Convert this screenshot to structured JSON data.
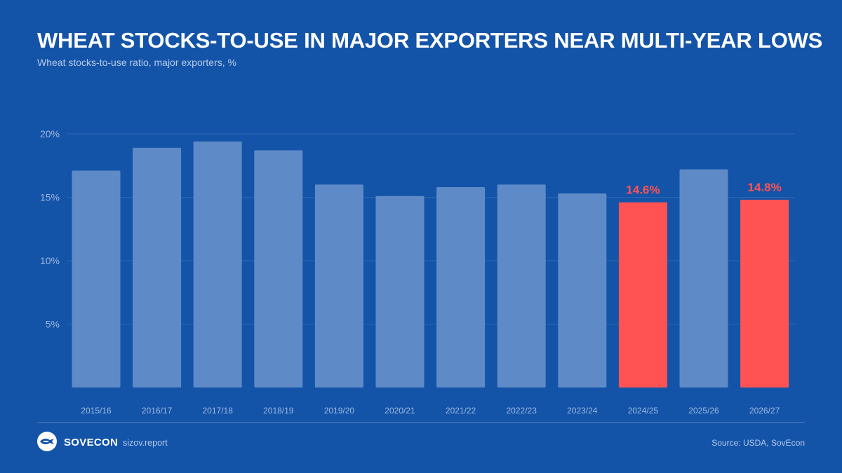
{
  "header": {
    "title": "WHEAT STOCKS-TO-USE IN MAJOR EXPORTERS NEAR MULTI-YEAR LOWS",
    "subtitle": "Wheat stocks-to-use ratio, major exporters, %"
  },
  "footer": {
    "brand": "SOVECON",
    "site": "sizov.report",
    "source": "Source: USDA, SovEcon",
    "logo_icon": "sovecon-logo-icon"
  },
  "colors": {
    "background": "#1354a8",
    "bar": "#5e8bc7",
    "highlight": "#ff5252",
    "axis_text": "#9fb8e0"
  },
  "chart_data": {
    "type": "bar",
    "title": "WHEAT STOCKS-TO-USE IN MAJOR EXPORTERS NEAR MULTI-YEAR LOWS",
    "subtitle": "Wheat stocks-to-use ratio, major exporters, %",
    "xlabel": "",
    "ylabel": "",
    "categories": [
      "2015/16",
      "2016/17",
      "2017/18",
      "2018/19",
      "2019/20",
      "2020/21",
      "2021/22",
      "2022/23",
      "2023/24",
      "2024/25",
      "2025/26",
      "2026/27"
    ],
    "values": [
      17.1,
      18.9,
      19.4,
      18.7,
      16.0,
      15.1,
      15.8,
      16.0,
      15.3,
      14.6,
      17.2,
      14.8
    ],
    "highlighted": [
      "2024/25",
      "2026/27"
    ],
    "data_labels": {
      "2024/25": "14.6%",
      "2026/27": "14.8%"
    },
    "y_ticks": [
      5,
      10,
      15,
      20
    ],
    "y_tick_labels": [
      "5%",
      "10%",
      "15%",
      "20%"
    ],
    "ylim": [
      0,
      20
    ],
    "grid": true,
    "legend": "none"
  }
}
